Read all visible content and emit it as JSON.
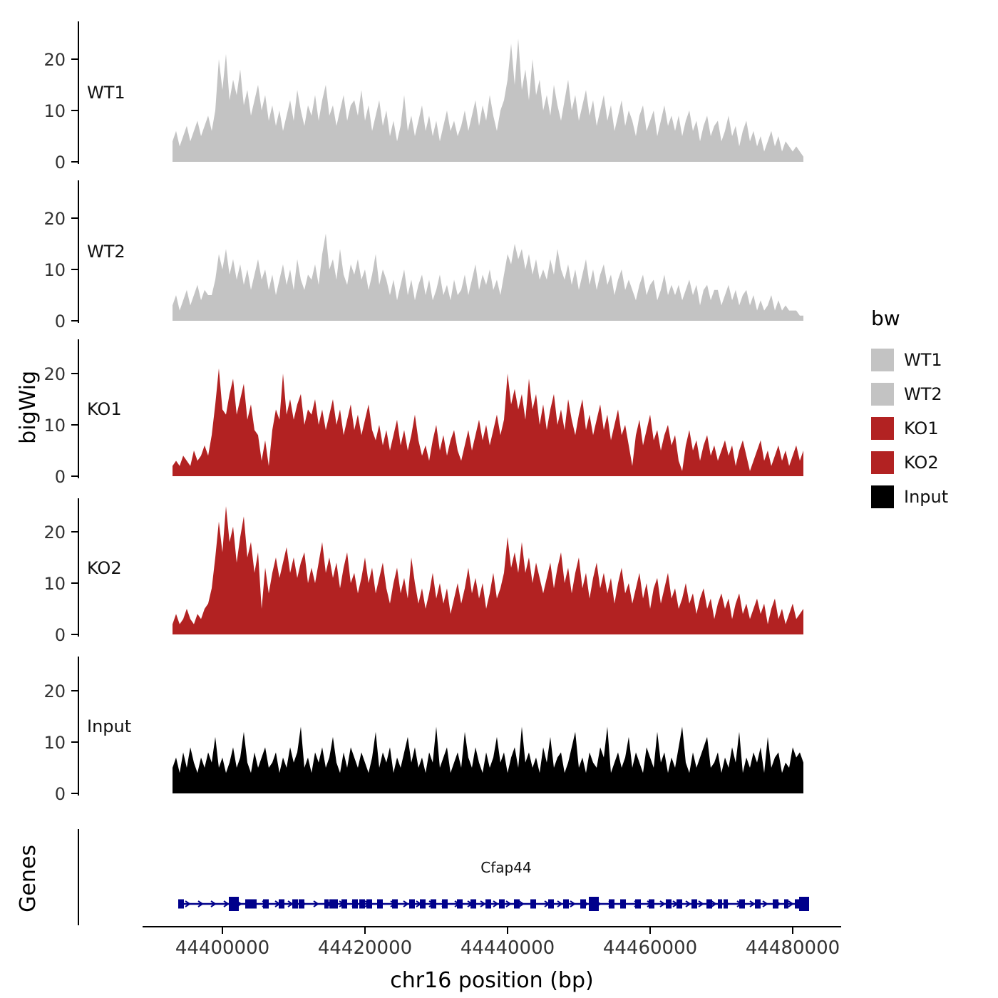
{
  "y_axis_title": "bigWig",
  "genes_axis_title": "Genes",
  "x_axis": {
    "title": "chr16 position (bp)",
    "ticks": [
      44400000,
      44420000,
      44440000,
      44460000,
      44480000
    ],
    "tick_labels": [
      "44400000",
      "44420000",
      "44440000",
      "44460000",
      "44480000"
    ]
  },
  "legend": {
    "title": "bw",
    "items": [
      {
        "label": "WT1",
        "color": "#c3c3c3"
      },
      {
        "label": "WT2",
        "color": "#c3c3c3"
      },
      {
        "label": "KO1",
        "color": "#b22222"
      },
      {
        "label": "KO2",
        "color": "#b22222"
      },
      {
        "label": "Input",
        "color": "#000000"
      }
    ]
  },
  "gene": {
    "name": "Cfap44",
    "color": "#00008b",
    "chrom": "chr16",
    "start": 44394000,
    "end": 44482000,
    "exons": [
      [
        44394200,
        800,
        0
      ],
      [
        44401600,
        1400,
        1
      ],
      [
        44403600,
        800,
        0
      ],
      [
        44404400,
        800,
        0
      ],
      [
        44406100,
        800,
        0
      ],
      [
        44408300,
        800,
        0
      ],
      [
        44410200,
        800,
        0
      ],
      [
        44411100,
        800,
        0
      ],
      [
        44414600,
        600,
        0
      ],
      [
        44415300,
        600,
        0
      ],
      [
        44415900,
        600,
        0
      ],
      [
        44417100,
        800,
        0
      ],
      [
        44418600,
        800,
        0
      ],
      [
        44419600,
        800,
        0
      ],
      [
        44420600,
        800,
        0
      ],
      [
        44422100,
        800,
        0
      ],
      [
        44424200,
        800,
        0
      ],
      [
        44426600,
        800,
        0
      ],
      [
        44428100,
        800,
        0
      ],
      [
        44429600,
        800,
        0
      ],
      [
        44431200,
        800,
        0
      ],
      [
        44433300,
        800,
        0
      ],
      [
        44435200,
        800,
        0
      ],
      [
        44437300,
        800,
        0
      ],
      [
        44439200,
        800,
        0
      ],
      [
        44441300,
        800,
        0
      ],
      [
        44443600,
        800,
        0
      ],
      [
        44446100,
        800,
        0
      ],
      [
        44448200,
        800,
        0
      ],
      [
        44450600,
        800,
        0
      ],
      [
        44452100,
        1400,
        1
      ],
      [
        44454600,
        800,
        0
      ],
      [
        44456200,
        800,
        0
      ],
      [
        44458300,
        800,
        0
      ],
      [
        44460200,
        800,
        0
      ],
      [
        44462600,
        800,
        0
      ],
      [
        44464100,
        800,
        0
      ],
      [
        44466200,
        800,
        0
      ],
      [
        44468300,
        800,
        0
      ],
      [
        44469800,
        600,
        0
      ],
      [
        44470600,
        600,
        0
      ],
      [
        44472900,
        800,
        0
      ],
      [
        44475100,
        800,
        0
      ],
      [
        44477600,
        800,
        0
      ],
      [
        44479100,
        600,
        0
      ],
      [
        44480600,
        600,
        0
      ],
      [
        44481600,
        1400,
        1
      ]
    ]
  },
  "chart_data": {
    "type": "area",
    "title": "",
    "xlabel": "chr16 position (bp)",
    "ylabel": "bigWig",
    "x_start": 44393000,
    "x_step": 500,
    "y_ticks": [
      0,
      10,
      20
    ],
    "ylim": [
      0,
      27
    ],
    "xlim": [
      44389000,
      44487000
    ],
    "series": [
      {
        "name": "WT1",
        "color": "#c3c3c3",
        "values": [
          4,
          6,
          3,
          5,
          7,
          4,
          6,
          8,
          5,
          7,
          9,
          6,
          10,
          20,
          14,
          21,
          12,
          16,
          13,
          18,
          11,
          14,
          9,
          12,
          15,
          10,
          13,
          8,
          11,
          7,
          10,
          6,
          9,
          12,
          8,
          14,
          10,
          7,
          11,
          9,
          13,
          8,
          12,
          15,
          9,
          11,
          7,
          10,
          13,
          8,
          11,
          12,
          9,
          14,
          8,
          11,
          6,
          9,
          12,
          7,
          10,
          5,
          8,
          4,
          7,
          13,
          6,
          9,
          5,
          8,
          11,
          6,
          9,
          5,
          8,
          4,
          7,
          10,
          6,
          8,
          5,
          7,
          10,
          6,
          9,
          12,
          7,
          11,
          8,
          13,
          9,
          6,
          10,
          12,
          16,
          23,
          15,
          24,
          14,
          18,
          12,
          20,
          13,
          16,
          10,
          13,
          9,
          15,
          11,
          8,
          12,
          16,
          10,
          13,
          8,
          11,
          14,
          9,
          12,
          7,
          10,
          13,
          8,
          11,
          6,
          9,
          12,
          7,
          10,
          8,
          5,
          9,
          11,
          6,
          8,
          10,
          5,
          8,
          11,
          7,
          9,
          6,
          9,
          5,
          8,
          10,
          6,
          8,
          4,
          7,
          9,
          5,
          7,
          8,
          4,
          6,
          9,
          5,
          7,
          3,
          6,
          8,
          4,
          6,
          3,
          5,
          2,
          4,
          6,
          3,
          5,
          2,
          4,
          3,
          2,
          3,
          2,
          1
        ]
      },
      {
        "name": "WT2",
        "color": "#c3c3c3",
        "values": [
          3,
          5,
          2,
          4,
          6,
          3,
          5,
          7,
          4,
          6,
          5,
          5,
          8,
          13,
          10,
          14,
          9,
          12,
          8,
          11,
          7,
          10,
          6,
          9,
          12,
          8,
          10,
          6,
          9,
          5,
          8,
          11,
          7,
          10,
          6,
          12,
          8,
          6,
          9,
          8,
          11,
          7,
          13,
          17,
          10,
          12,
          8,
          14,
          9,
          7,
          11,
          9,
          12,
          8,
          10,
          6,
          9,
          13,
          7,
          10,
          8,
          5,
          8,
          4,
          7,
          10,
          5,
          8,
          4,
          7,
          9,
          5,
          8,
          4,
          6,
          9,
          5,
          7,
          4,
          8,
          5,
          6,
          9,
          5,
          8,
          11,
          6,
          9,
          7,
          10,
          6,
          8,
          5,
          9,
          13,
          11,
          15,
          12,
          14,
          10,
          13,
          9,
          12,
          8,
          10,
          8,
          12,
          9,
          14,
          10,
          8,
          11,
          7,
          10,
          6,
          9,
          12,
          7,
          10,
          6,
          9,
          11,
          7,
          9,
          5,
          8,
          10,
          6,
          8,
          6,
          4,
          7,
          9,
          5,
          7,
          8,
          4,
          6,
          9,
          5,
          7,
          5,
          7,
          4,
          6,
          8,
          5,
          7,
          3,
          6,
          7,
          4,
          6,
          6,
          3,
          5,
          7,
          4,
          6,
          3,
          5,
          6,
          3,
          5,
          2,
          4,
          2,
          3,
          5,
          2,
          4,
          2,
          3,
          2,
          2,
          2,
          1,
          1
        ]
      },
      {
        "name": "KO1",
        "color": "#b22222",
        "values": [
          2,
          3,
          2,
          4,
          3,
          2,
          5,
          3,
          4,
          6,
          4,
          8,
          14,
          21,
          13,
          12,
          16,
          19,
          12,
          15,
          18,
          11,
          14,
          9,
          8,
          3,
          7,
          2,
          9,
          13,
          11,
          20,
          12,
          15,
          11,
          14,
          16,
          10,
          13,
          12,
          15,
          10,
          13,
          9,
          12,
          15,
          10,
          13,
          8,
          11,
          14,
          9,
          12,
          8,
          11,
          14,
          9,
          7,
          10,
          6,
          9,
          5,
          8,
          11,
          6,
          9,
          5,
          8,
          12,
          7,
          4,
          6,
          3,
          7,
          10,
          5,
          8,
          4,
          7,
          9,
          5,
          3,
          6,
          9,
          5,
          8,
          11,
          7,
          10,
          6,
          9,
          12,
          8,
          11,
          20,
          14,
          17,
          13,
          16,
          11,
          19,
          13,
          16,
          10,
          14,
          9,
          13,
          16,
          10,
          13,
          9,
          15,
          11,
          8,
          12,
          15,
          9,
          12,
          8,
          11,
          14,
          9,
          12,
          7,
          10,
          13,
          8,
          10,
          6,
          2,
          8,
          11,
          6,
          9,
          12,
          7,
          9,
          5,
          8,
          10,
          6,
          8,
          3,
          1,
          6,
          9,
          5,
          7,
          3,
          6,
          8,
          4,
          6,
          3,
          5,
          7,
          4,
          6,
          2,
          5,
          7,
          4,
          1,
          3,
          5,
          7,
          3,
          5,
          2,
          4,
          6,
          3,
          5,
          2,
          4,
          6,
          3,
          5
        ]
      },
      {
        "name": "KO2",
        "color": "#b22222",
        "values": [
          2,
          4,
          2,
          3,
          5,
          3,
          2,
          4,
          3,
          5,
          6,
          9,
          15,
          22,
          16,
          25,
          18,
          21,
          14,
          19,
          23,
          15,
          18,
          12,
          16,
          5,
          13,
          8,
          12,
          15,
          11,
          14,
          17,
          12,
          15,
          11,
          14,
          16,
          10,
          13,
          10,
          14,
          18,
          12,
          15,
          11,
          14,
          9,
          13,
          16,
          10,
          12,
          8,
          11,
          15,
          10,
          13,
          8,
          11,
          14,
          9,
          6,
          10,
          13,
          8,
          11,
          7,
          15,
          10,
          6,
          9,
          5,
          8,
          12,
          7,
          10,
          6,
          9,
          4,
          7,
          10,
          6,
          9,
          13,
          8,
          11,
          7,
          10,
          5,
          8,
          12,
          7,
          9,
          12,
          19,
          13,
          16,
          12,
          18,
          12,
          15,
          10,
          14,
          11,
          8,
          11,
          14,
          9,
          13,
          16,
          10,
          13,
          8,
          12,
          15,
          9,
          12,
          7,
          11,
          14,
          9,
          12,
          8,
          11,
          6,
          10,
          13,
          8,
          10,
          6,
          9,
          12,
          7,
          10,
          5,
          9,
          11,
          6,
          9,
          12,
          7,
          9,
          5,
          7,
          10,
          6,
          8,
          4,
          7,
          9,
          5,
          7,
          3,
          6,
          8,
          5,
          7,
          3,
          6,
          8,
          4,
          6,
          3,
          5,
          7,
          4,
          6,
          2,
          5,
          7,
          3,
          5,
          2,
          4,
          6,
          3,
          4,
          5
        ]
      },
      {
        "name": "Input",
        "color": "#000000",
        "values": [
          5,
          7,
          4,
          8,
          5,
          9,
          6,
          4,
          7,
          5,
          8,
          6,
          11,
          5,
          7,
          4,
          6,
          9,
          5,
          7,
          12,
          6,
          4,
          8,
          5,
          7,
          9,
          5,
          6,
          8,
          4,
          7,
          5,
          9,
          6,
          8,
          13,
          5,
          7,
          4,
          8,
          6,
          9,
          5,
          7,
          11,
          6,
          4,
          8,
          5,
          9,
          7,
          5,
          8,
          6,
          4,
          7,
          12,
          5,
          8,
          6,
          9,
          4,
          7,
          5,
          8,
          11,
          6,
          9,
          5,
          7,
          4,
          8,
          6,
          13,
          5,
          7,
          9,
          4,
          6,
          8,
          5,
          12,
          7,
          5,
          9,
          6,
          4,
          8,
          5,
          7,
          11,
          6,
          8,
          4,
          7,
          9,
          5,
          13,
          6,
          8,
          5,
          7,
          4,
          9,
          6,
          11,
          5,
          7,
          8,
          4,
          6,
          9,
          12,
          5,
          7,
          4,
          8,
          6,
          5,
          9,
          7,
          13,
          4,
          6,
          8,
          5,
          7,
          11,
          5,
          8,
          6,
          4,
          9,
          7,
          5,
          12,
          6,
          8,
          4,
          7,
          5,
          9,
          13,
          6,
          4,
          8,
          5,
          7,
          9,
          11,
          5,
          6,
          8,
          4,
          7,
          5,
          9,
          6,
          12,
          4,
          7,
          5,
          8,
          6,
          9,
          4,
          11,
          5,
          7,
          8,
          4,
          6,
          5,
          9,
          7,
          8,
          6
        ]
      }
    ]
  }
}
